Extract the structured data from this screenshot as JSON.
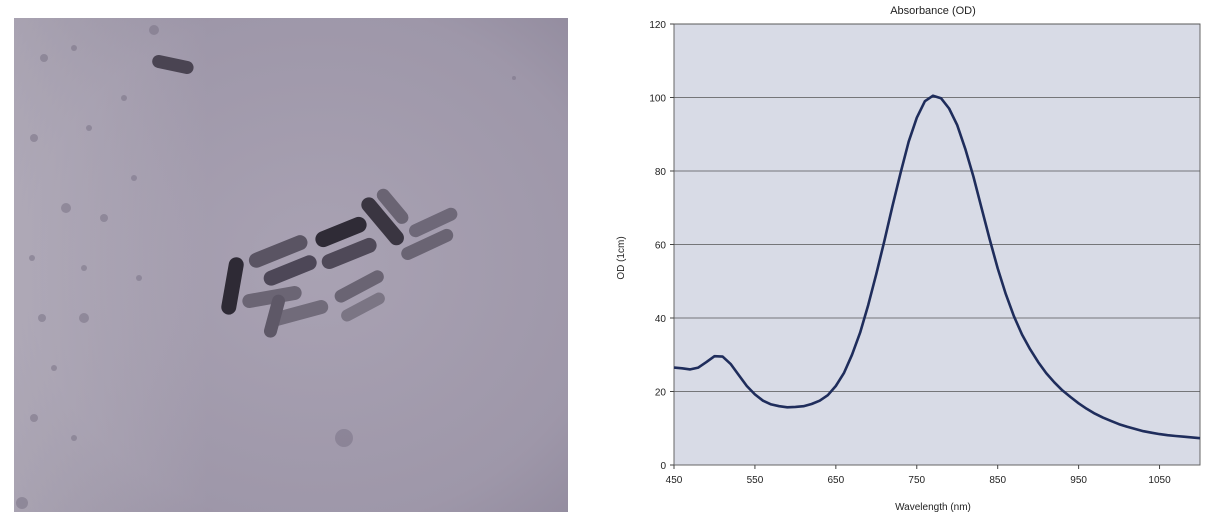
{
  "micrograph": {
    "icon": "tem-micrograph-gold-nanorods"
  },
  "chart_data": {
    "type": "line",
    "title": "Absorbance (OD)",
    "xlabel": "Wavelength (nm)",
    "ylabel": "OD (1cm)",
    "xlim": [
      450,
      1100
    ],
    "ylim": [
      0,
      120
    ],
    "xticks": [
      450,
      550,
      650,
      750,
      850,
      950,
      1050
    ],
    "yticks": [
      0,
      20,
      40,
      60,
      80,
      100,
      120
    ],
    "grid": "horizontal",
    "colors": {
      "line": "#1f2d5c",
      "plot_bg": "#d8dbe6",
      "grid": "#555555"
    },
    "series": [
      {
        "x": [
          450,
          460,
          470,
          480,
          490,
          500,
          510,
          520,
          530,
          540,
          550,
          560,
          570,
          580,
          590,
          600,
          610,
          620,
          630,
          640,
          650,
          660,
          670,
          680,
          690,
          700,
          710,
          720,
          730,
          740,
          750,
          760,
          770,
          780,
          790,
          800,
          810,
          820,
          830,
          840,
          850,
          860,
          870,
          880,
          890,
          900,
          910,
          920,
          930,
          940,
          950,
          960,
          970,
          980,
          990,
          1000,
          1010,
          1020,
          1030,
          1040,
          1050,
          1060,
          1070,
          1080,
          1090,
          1100
        ],
        "y": [
          26.5,
          26.3,
          26.0,
          26.5,
          28.0,
          29.6,
          29.5,
          27.5,
          24.5,
          21.5,
          19.2,
          17.5,
          16.5,
          16.0,
          15.7,
          15.8,
          16.0,
          16.6,
          17.5,
          19.0,
          21.5,
          25.0,
          30.0,
          36.0,
          43.5,
          52.0,
          61.0,
          70.5,
          79.5,
          88.0,
          94.5,
          99.0,
          100.5,
          99.8,
          97.0,
          92.5,
          86.0,
          78.5,
          70.0,
          61.5,
          53.5,
          46.5,
          40.5,
          35.5,
          31.5,
          28.0,
          25.0,
          22.5,
          20.3,
          18.5,
          16.8,
          15.3,
          14.0,
          12.9,
          12.0,
          11.1,
          10.4,
          9.8,
          9.2,
          8.8,
          8.4,
          8.1,
          7.9,
          7.7,
          7.5,
          7.3
        ]
      }
    ]
  }
}
